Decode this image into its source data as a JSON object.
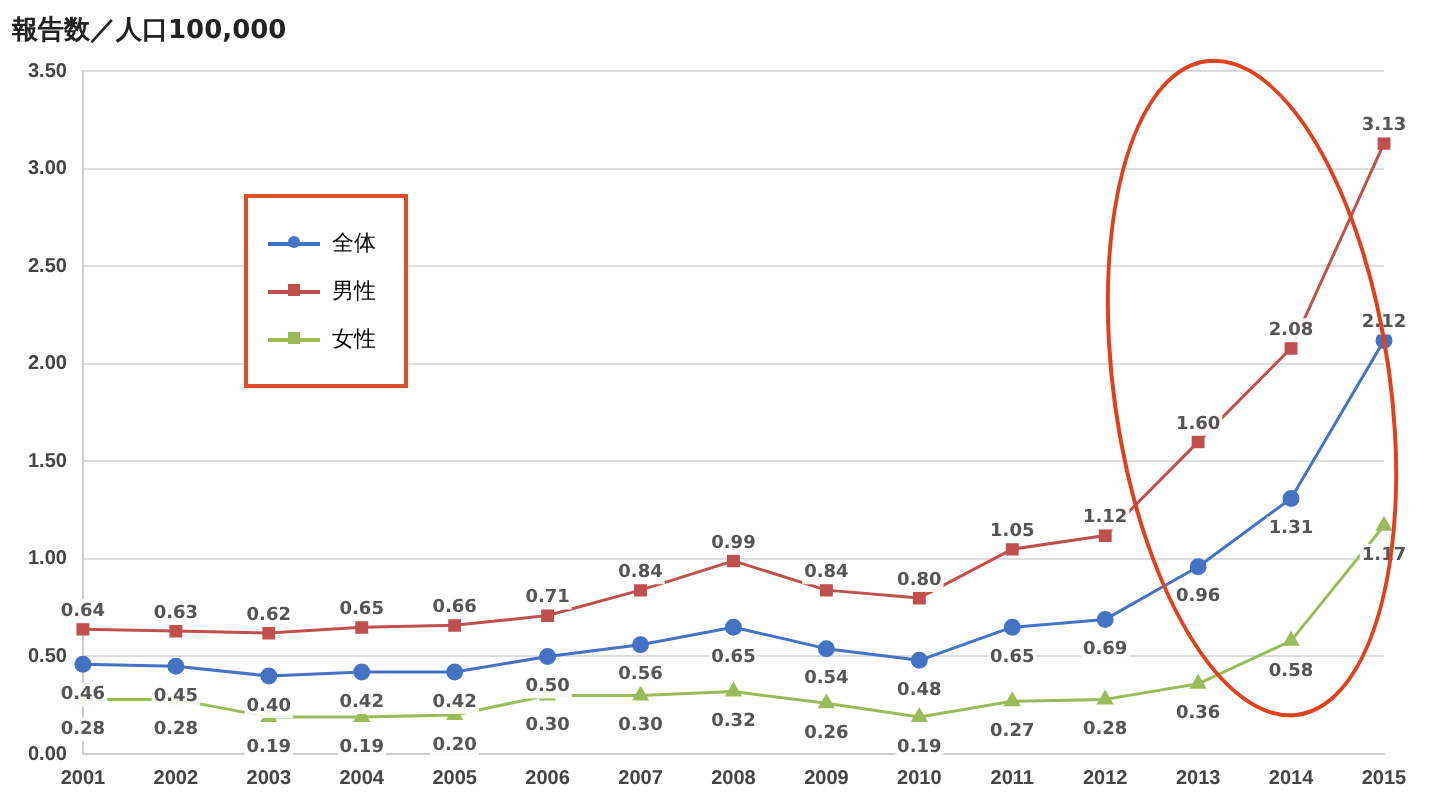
{
  "chart_data": {
    "type": "line",
    "title": "報告数／人口100,000",
    "categories": [
      "2001",
      "2002",
      "2003",
      "2004",
      "2005",
      "2006",
      "2007",
      "2008",
      "2009",
      "2010",
      "2011",
      "2012",
      "2013",
      "2014",
      "2015"
    ],
    "series": [
      {
        "name": "全体",
        "color": "#4472c4",
        "marker": "circle",
        "values": [
          0.46,
          0.45,
          0.4,
          0.42,
          0.42,
          0.5,
          0.56,
          0.65,
          0.54,
          0.48,
          0.65,
          0.69,
          0.96,
          1.31,
          2.12
        ],
        "value_labels": [
          "0.46",
          "0.45",
          "0.40",
          "0.42",
          "0.42",
          "0.50",
          "0.56",
          "0.65",
          "0.54",
          "0.48",
          "0.65",
          "0.69",
          "0.96",
          "1.31",
          "2.12"
        ]
      },
      {
        "name": "男性",
        "color": "#c0504d",
        "marker": "square",
        "values": [
          0.64,
          0.63,
          0.62,
          0.65,
          0.66,
          0.71,
          0.84,
          0.99,
          0.84,
          0.8,
          1.05,
          1.12,
          1.6,
          2.08,
          3.13
        ],
        "value_labels": [
          "0.64",
          "0.63",
          "0.62",
          "0.65",
          "0.66",
          "0.71",
          "0.84",
          "0.99",
          "0.84",
          "0.80",
          "1.05",
          "1.12",
          "1.60",
          "2.08",
          "3.13"
        ]
      },
      {
        "name": "女性",
        "color": "#9bbb59",
        "marker": "triangle",
        "values": [
          0.28,
          0.28,
          0.19,
          0.19,
          0.2,
          0.3,
          0.3,
          0.32,
          0.26,
          0.19,
          0.27,
          0.28,
          0.36,
          0.58,
          1.17
        ],
        "value_labels": [
          "0.28",
          "0.28",
          "0.19",
          "0.19",
          "0.20",
          "0.30",
          "0.30",
          "0.32",
          "0.26",
          "0.19",
          "0.27",
          "0.28",
          "0.36",
          "0.58",
          "1.17"
        ]
      }
    ],
    "ylim": [
      0,
      3.5
    ],
    "yticks": [
      {
        "value": 0,
        "label": "0.00"
      },
      {
        "value": 0.5,
        "label": "0.50"
      },
      {
        "value": 1,
        "label": "1.00"
      },
      {
        "value": 1.5,
        "label": "1.50"
      },
      {
        "value": 2,
        "label": "2.00"
      },
      {
        "value": 2.5,
        "label": "2.50"
      },
      {
        "value": 3,
        "label": "3.00"
      },
      {
        "value": 3.5,
        "label": "3.50"
      }
    ],
    "grid": "y",
    "legend": "top left",
    "line_style": "solid"
  }
}
